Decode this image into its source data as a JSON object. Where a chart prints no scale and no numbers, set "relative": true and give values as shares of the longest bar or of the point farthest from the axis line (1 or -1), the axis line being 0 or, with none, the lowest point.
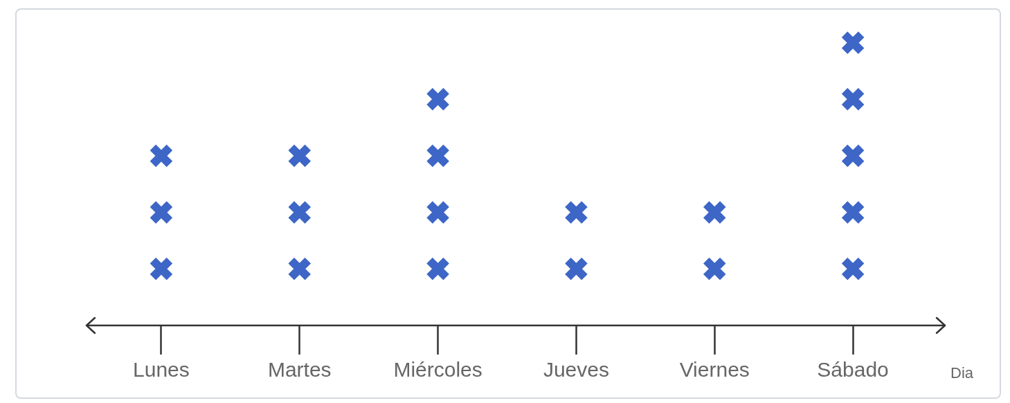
{
  "chart_data": {
    "type": "scatter",
    "xlabel": "Dia",
    "categories": [
      "Lunes",
      "Martes",
      "Miércoles",
      "Jueves",
      "Viernes",
      "Sábado"
    ],
    "series": [
      {
        "color": "#3d66c6",
        "x": [
          "Lunes",
          "Lunes",
          "Lunes",
          "Martes",
          "Martes",
          "Martes",
          "Miércoles",
          "Miércoles",
          "Miércoles",
          "Miércoles",
          "Jueves",
          "Jueves",
          "Viernes",
          "Viernes",
          "Sábado",
          "Sábado",
          "Sábado",
          "Sábado",
          "Sábado"
        ],
        "values": [
          0.2,
          0.4,
          0.6,
          0.2,
          0.4,
          0.6,
          0.2,
          0.4,
          0.6,
          0.8,
          0.2,
          0.4,
          0.2,
          0.4,
          0.2,
          0.4,
          0.6,
          0.8,
          1
        ]
      }
    ],
    "marker": "cross",
    "relative": true
  }
}
